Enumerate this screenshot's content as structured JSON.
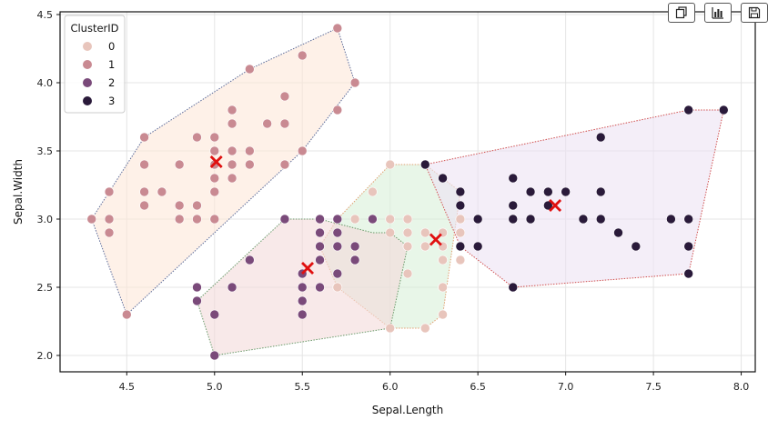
{
  "toolbar": {
    "buttons": [
      {
        "name": "copy-button",
        "icon": "copy-icon"
      },
      {
        "name": "chart-button",
        "icon": "bar-chart-icon"
      },
      {
        "name": "save-button",
        "icon": "save-icon"
      }
    ]
  },
  "chart_data": {
    "type": "scatter",
    "title": "",
    "xlabel": "Sepal.Length",
    "ylabel": "Sepal.Width",
    "xlim": [
      4.12,
      8.08
    ],
    "ylim": [
      1.88,
      4.52
    ],
    "xticks": [
      4.5,
      5.0,
      5.5,
      6.0,
      6.5,
      7.0,
      7.5,
      8.0
    ],
    "xtick_labels": [
      "4.5",
      "5.0",
      "5.5",
      "6.0",
      "6.5",
      "7.0",
      "7.5",
      "8.0"
    ],
    "yticks": [
      2.0,
      2.5,
      3.0,
      3.5,
      4.0,
      4.5
    ],
    "ytick_labels": [
      "2.0",
      "2.5",
      "3.0",
      "3.5",
      "4.0",
      "4.5"
    ],
    "grid": true,
    "legend": {
      "title": "ClusterID",
      "position": "top-left",
      "entries": [
        "0",
        "1",
        "2",
        "3"
      ]
    },
    "series": [
      {
        "name": "0",
        "color": "#e8c5bc",
        "hull_fill": "#d8f0d8",
        "hull_stroke": "#e0a070",
        "hull": [
          [
            6.0,
            3.4
          ],
          [
            6.2,
            3.4
          ],
          [
            6.4,
            3.2
          ],
          [
            6.3,
            2.3
          ],
          [
            6.2,
            2.2
          ],
          [
            6.0,
            2.2
          ],
          [
            5.7,
            2.5
          ],
          [
            5.6,
            2.8
          ],
          [
            5.7,
            3.0
          ]
        ],
        "centroid": [
          6.26,
          2.85
        ],
        "x": [
          6.0,
          5.9,
          5.8,
          6.0,
          6.1,
          6.0,
          6.2,
          5.9,
          6.1,
          6.1,
          6.3,
          6.3,
          6.2,
          6.2,
          6.3,
          6.4,
          6.4,
          6.4,
          6.4,
          6.3,
          5.6,
          5.7,
          5.8,
          5.8,
          6.1,
          6.0,
          6.2,
          6.2,
          6.3,
          6.3,
          6.1,
          5.7,
          6.3
        ],
        "y": [
          3.4,
          3.2,
          3.0,
          3.0,
          3.0,
          2.9,
          2.9,
          3.0,
          2.9,
          2.8,
          2.9,
          2.8,
          2.8,
          2.2,
          2.3,
          3.0,
          2.9,
          2.8,
          2.7,
          2.5,
          2.8,
          2.5,
          2.7,
          2.8,
          2.6,
          2.2,
          2.2,
          2.8,
          2.7,
          2.5,
          2.8,
          2.5,
          2.9
        ]
      },
      {
        "name": "1",
        "color": "#c98a92",
        "hull_fill": "#fde8d8",
        "hull_stroke": "#5a6a99",
        "hull": [
          [
            5.7,
            4.4
          ],
          [
            5.8,
            4.0
          ],
          [
            5.5,
            3.5
          ],
          [
            4.5,
            2.3
          ],
          [
            4.3,
            3.0
          ],
          [
            4.6,
            3.6
          ],
          [
            5.2,
            4.1
          ]
        ],
        "centroid": [
          5.01,
          3.42
        ],
        "x": [
          5.1,
          4.9,
          4.7,
          4.6,
          5.0,
          5.4,
          4.6,
          5.0,
          4.4,
          4.9,
          5.4,
          4.8,
          4.8,
          4.3,
          5.8,
          5.7,
          5.4,
          5.1,
          5.7,
          5.1,
          5.4,
          5.1,
          4.6,
          5.1,
          4.8,
          5.0,
          5.0,
          5.2,
          5.2,
          4.7,
          4.8,
          5.4,
          5.2,
          5.5,
          4.9,
          5.0,
          5.5,
          4.9,
          4.4,
          5.1,
          5.0,
          4.5,
          4.4,
          5.0,
          5.1,
          4.8,
          5.1,
          4.6,
          5.3,
          5.0
        ],
        "y": [
          3.5,
          3.0,
          3.2,
          3.1,
          3.6,
          3.9,
          3.4,
          3.4,
          2.9,
          3.1,
          3.7,
          3.4,
          3.0,
          3.0,
          4.0,
          4.4,
          3.9,
          3.5,
          3.8,
          3.8,
          3.4,
          3.7,
          3.6,
          3.3,
          3.4,
          3.0,
          3.4,
          3.5,
          3.4,
          3.2,
          3.1,
          3.4,
          4.1,
          4.2,
          3.1,
          3.2,
          3.5,
          3.6,
          3.0,
          3.4,
          3.5,
          2.3,
          3.2,
          3.5,
          3.8,
          3.0,
          3.8,
          3.2,
          3.7,
          3.3
        ]
      },
      {
        "name": "2",
        "color": "#7a4a7a",
        "hull_fill": "#f4dada",
        "hull_stroke": "#6a9a6a",
        "hull": [
          [
            5.4,
            3.0
          ],
          [
            5.6,
            3.0
          ],
          [
            5.9,
            2.9
          ],
          [
            6.0,
            2.9
          ],
          [
            6.1,
            2.8
          ],
          [
            6.0,
            2.2
          ],
          [
            5.0,
            2.0
          ],
          [
            4.9,
            2.4
          ]
        ],
        "centroid": [
          5.53,
          2.64
        ],
        "x": [
          5.5,
          5.7,
          5.2,
          5.0,
          5.9,
          5.6,
          5.6,
          5.8,
          5.6,
          5.7,
          5.5,
          5.5,
          5.8,
          5.0,
          5.6,
          5.7,
          5.7,
          5.1,
          5.7,
          4.9,
          5.6,
          5.8,
          5.5,
          4.9,
          5.4,
          5.6,
          5.0,
          5.5
        ],
        "y": [
          2.3,
          2.8,
          2.7,
          2.0,
          3.0,
          2.9,
          3.0,
          2.7,
          2.5,
          2.6,
          2.4,
          2.4,
          2.7,
          2.3,
          3.0,
          3.0,
          2.9,
          2.5,
          2.8,
          2.5,
          2.8,
          2.8,
          2.6,
          2.4,
          3.0,
          2.7,
          2.3,
          2.5
        ]
      },
      {
        "name": "3",
        "color": "#2a1a3a",
        "hull_fill": "#ece2f4",
        "hull_stroke": "#d05050",
        "hull": [
          [
            6.2,
            3.4
          ],
          [
            7.7,
            3.8
          ],
          [
            7.9,
            3.8
          ],
          [
            7.7,
            2.6
          ],
          [
            6.7,
            2.5
          ],
          [
            6.4,
            2.8
          ]
        ],
        "centroid": [
          6.94,
          3.1
        ],
        "x": [
          7.0,
          6.4,
          6.9,
          6.5,
          6.7,
          6.3,
          7.1,
          6.5,
          7.6,
          7.3,
          6.7,
          7.2,
          6.4,
          6.8,
          7.7,
          7.7,
          6.9,
          7.7,
          6.7,
          7.2,
          7.2,
          7.4,
          7.9,
          6.4,
          7.7,
          6.9,
          6.7,
          6.7,
          6.8,
          6.7,
          6.5,
          6.2
        ],
        "y": [
          3.2,
          3.2,
          3.1,
          2.8,
          3.1,
          3.3,
          3.0,
          3.0,
          3.0,
          2.9,
          2.5,
          3.6,
          2.8,
          3.0,
          3.8,
          2.6,
          3.2,
          2.8,
          3.3,
          3.2,
          3.0,
          2.8,
          3.8,
          3.1,
          3.0,
          3.1,
          3.1,
          3.0,
          3.2,
          3.0,
          3.0,
          3.4
        ]
      }
    ],
    "centroid_marker": {
      "symbol": "x",
      "color": "#e01010"
    }
  }
}
